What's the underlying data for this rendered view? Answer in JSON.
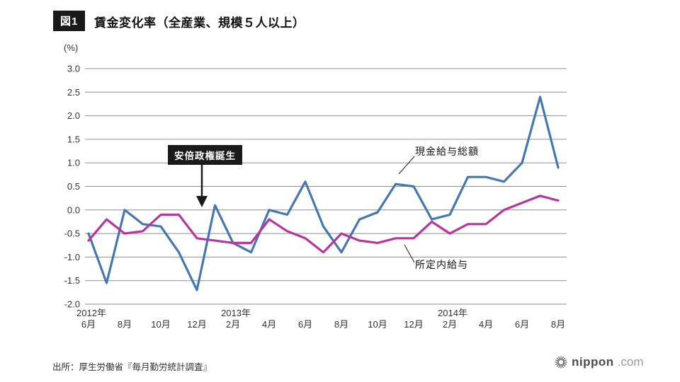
{
  "header": {
    "badge": "図1",
    "title": "賃金変化率（全産業、規模５人以上）"
  },
  "chart_data": {
    "type": "line",
    "title": "賃金変化率（全産業、規模５人以上）",
    "unit_label": "(%)",
    "ylim": [
      -2.0,
      3.0
    ],
    "grid": "horizontal",
    "yticks": [
      "3.0",
      "2.5",
      "2.0",
      "1.5",
      "1.0",
      "0.5",
      "0.0",
      "-0.5",
      "-1.0",
      "-1.5",
      "-2.0"
    ],
    "xticks": [
      {
        "year": "2012年",
        "month": "6月"
      },
      {
        "year": "",
        "month": "8月"
      },
      {
        "year": "",
        "month": "10月"
      },
      {
        "year": "",
        "month": "12月"
      },
      {
        "year": "2013年",
        "month": "2月"
      },
      {
        "year": "",
        "month": "4月"
      },
      {
        "year": "",
        "month": "6月"
      },
      {
        "year": "",
        "month": "8月"
      },
      {
        "year": "",
        "month": "10月"
      },
      {
        "year": "",
        "month": "12月"
      },
      {
        "year": "2014年",
        "month": "2月"
      },
      {
        "year": "",
        "month": "4月"
      },
      {
        "year": "",
        "month": "6月"
      },
      {
        "year": "",
        "month": "8月"
      }
    ],
    "x_months": [
      "2012-06",
      "2012-07",
      "2012-08",
      "2012-09",
      "2012-10",
      "2012-11",
      "2012-12",
      "2013-01",
      "2013-02",
      "2013-03",
      "2013-04",
      "2013-05",
      "2013-06",
      "2013-07",
      "2013-08",
      "2013-09",
      "2013-10",
      "2013-11",
      "2013-12",
      "2014-01",
      "2014-02",
      "2014-03",
      "2014-04",
      "2014-05",
      "2014-06",
      "2014-07",
      "2014-08"
    ],
    "series": [
      {
        "name": "現金給与総額",
        "color": "#4577b0",
        "values": [
          -0.5,
          -1.55,
          0.0,
          -0.3,
          -0.35,
          -0.9,
          -1.7,
          0.1,
          -0.7,
          -0.9,
          0.0,
          -0.1,
          0.6,
          -0.35,
          -0.9,
          -0.2,
          -0.05,
          0.55,
          0.5,
          -0.2,
          -0.1,
          0.7,
          0.7,
          0.6,
          1.0,
          2.4,
          0.9
        ]
      },
      {
        "name": "所定内給与",
        "color": "#b5379e",
        "values": [
          -0.65,
          -0.2,
          -0.5,
          -0.45,
          -0.1,
          -0.1,
          -0.6,
          -0.65,
          -0.7,
          -0.7,
          -0.2,
          -0.45,
          -0.6,
          -0.9,
          -0.5,
          -0.65,
          -0.7,
          -0.6,
          -0.6,
          -0.25,
          -0.5,
          -0.3,
          -0.3,
          0.0,
          0.15,
          0.3,
          0.2
        ]
      }
    ],
    "annotation": {
      "label": "安倍政権誕生"
    }
  },
  "footer": {
    "source": "出所：厚生労働省『毎月勤労統計調査』",
    "logo_text": "nippon",
    "logo_suffix": ".com"
  }
}
